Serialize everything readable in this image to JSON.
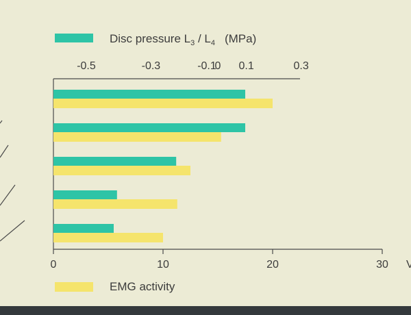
{
  "chart_data": {
    "type": "bar",
    "orientation": "horizontal",
    "categories": [
      "",
      "",
      "",
      "",
      ""
    ],
    "series": [
      {
        "name": "Disc pressure L3 / L4 (MPa)",
        "legend_main": "Disc pressure L",
        "legend_sub1": "3",
        "legend_mid": " / L",
        "legend_sub2": "4",
        "legend_unit": "(MPa)",
        "color": "#2ec4a6",
        "values_on_bottom_scale": [
          17.5,
          17.5,
          11.2,
          5.8,
          5.5
        ]
      },
      {
        "name": "EMG activity",
        "legend_main": "EMG activity",
        "color": "#f5e46c",
        "values": [
          20,
          15.3,
          12.5,
          11.3,
          10
        ]
      }
    ],
    "x_bottom": {
      "ticks": [
        0,
        10,
        20,
        30
      ],
      "tick_labels": [
        "0",
        "10",
        "20",
        "30"
      ],
      "range": [
        0,
        30
      ],
      "unit_label": "V"
    },
    "x_top": {
      "tick_labels": [
        "-0.5",
        "-0.3",
        "-0.1",
        "0",
        "0.1",
        "0.3"
      ],
      "tick_positions_bottom_scale": [
        3,
        8.9,
        14,
        15,
        17.6,
        22.6
      ]
    },
    "grid": false
  },
  "colors": {
    "background": "#ecebd5",
    "axis": "#4a4a4a",
    "band": "#34393c"
  }
}
